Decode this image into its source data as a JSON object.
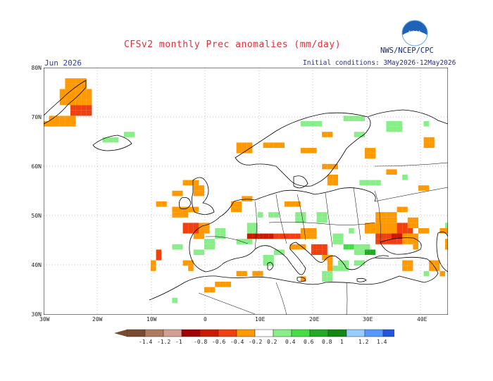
{
  "header": {
    "title": "CFSv2 monthly Prec anomalies (mm/day)",
    "org": "NWS/NCEP/CPC",
    "logo_text": "NOAA",
    "month": "Jun 2026",
    "initial_conditions": "Initial conditions: 3May2026-12May2026"
  },
  "axes": {
    "y_labels": [
      "80N",
      "70N",
      "60N",
      "50N",
      "40N",
      "30N"
    ],
    "x_labels": [
      "30W",
      "20W",
      "10W",
      "0",
      "10E",
      "20E",
      "30E",
      "40E"
    ]
  },
  "legend": {
    "labels": [
      "-1.4",
      "-1.2",
      "-1",
      "-0.8",
      "-0.6",
      "-0.4",
      "-0.2",
      "0.2",
      "0.4",
      "0.6",
      "0.8",
      "1",
      "1.2",
      "1.4"
    ],
    "colors": [
      "#7a4a30",
      "#b07a60",
      "#d2a090",
      "#a00000",
      "#cc1a00",
      "#f04010",
      "#ff9900",
      "#ffffff",
      "#88ee88",
      "#44dd44",
      "#22aa22",
      "#118811",
      "#99ccff",
      "#5599ff",
      "#2255dd"
    ]
  },
  "colors": {
    "orange": "#ff9900",
    "red": "#f04010",
    "darkred": "#cc1a00",
    "lightgreen": "#88ee88",
    "green": "#44dd44",
    "darkgreen": "#22aa22"
  }
}
